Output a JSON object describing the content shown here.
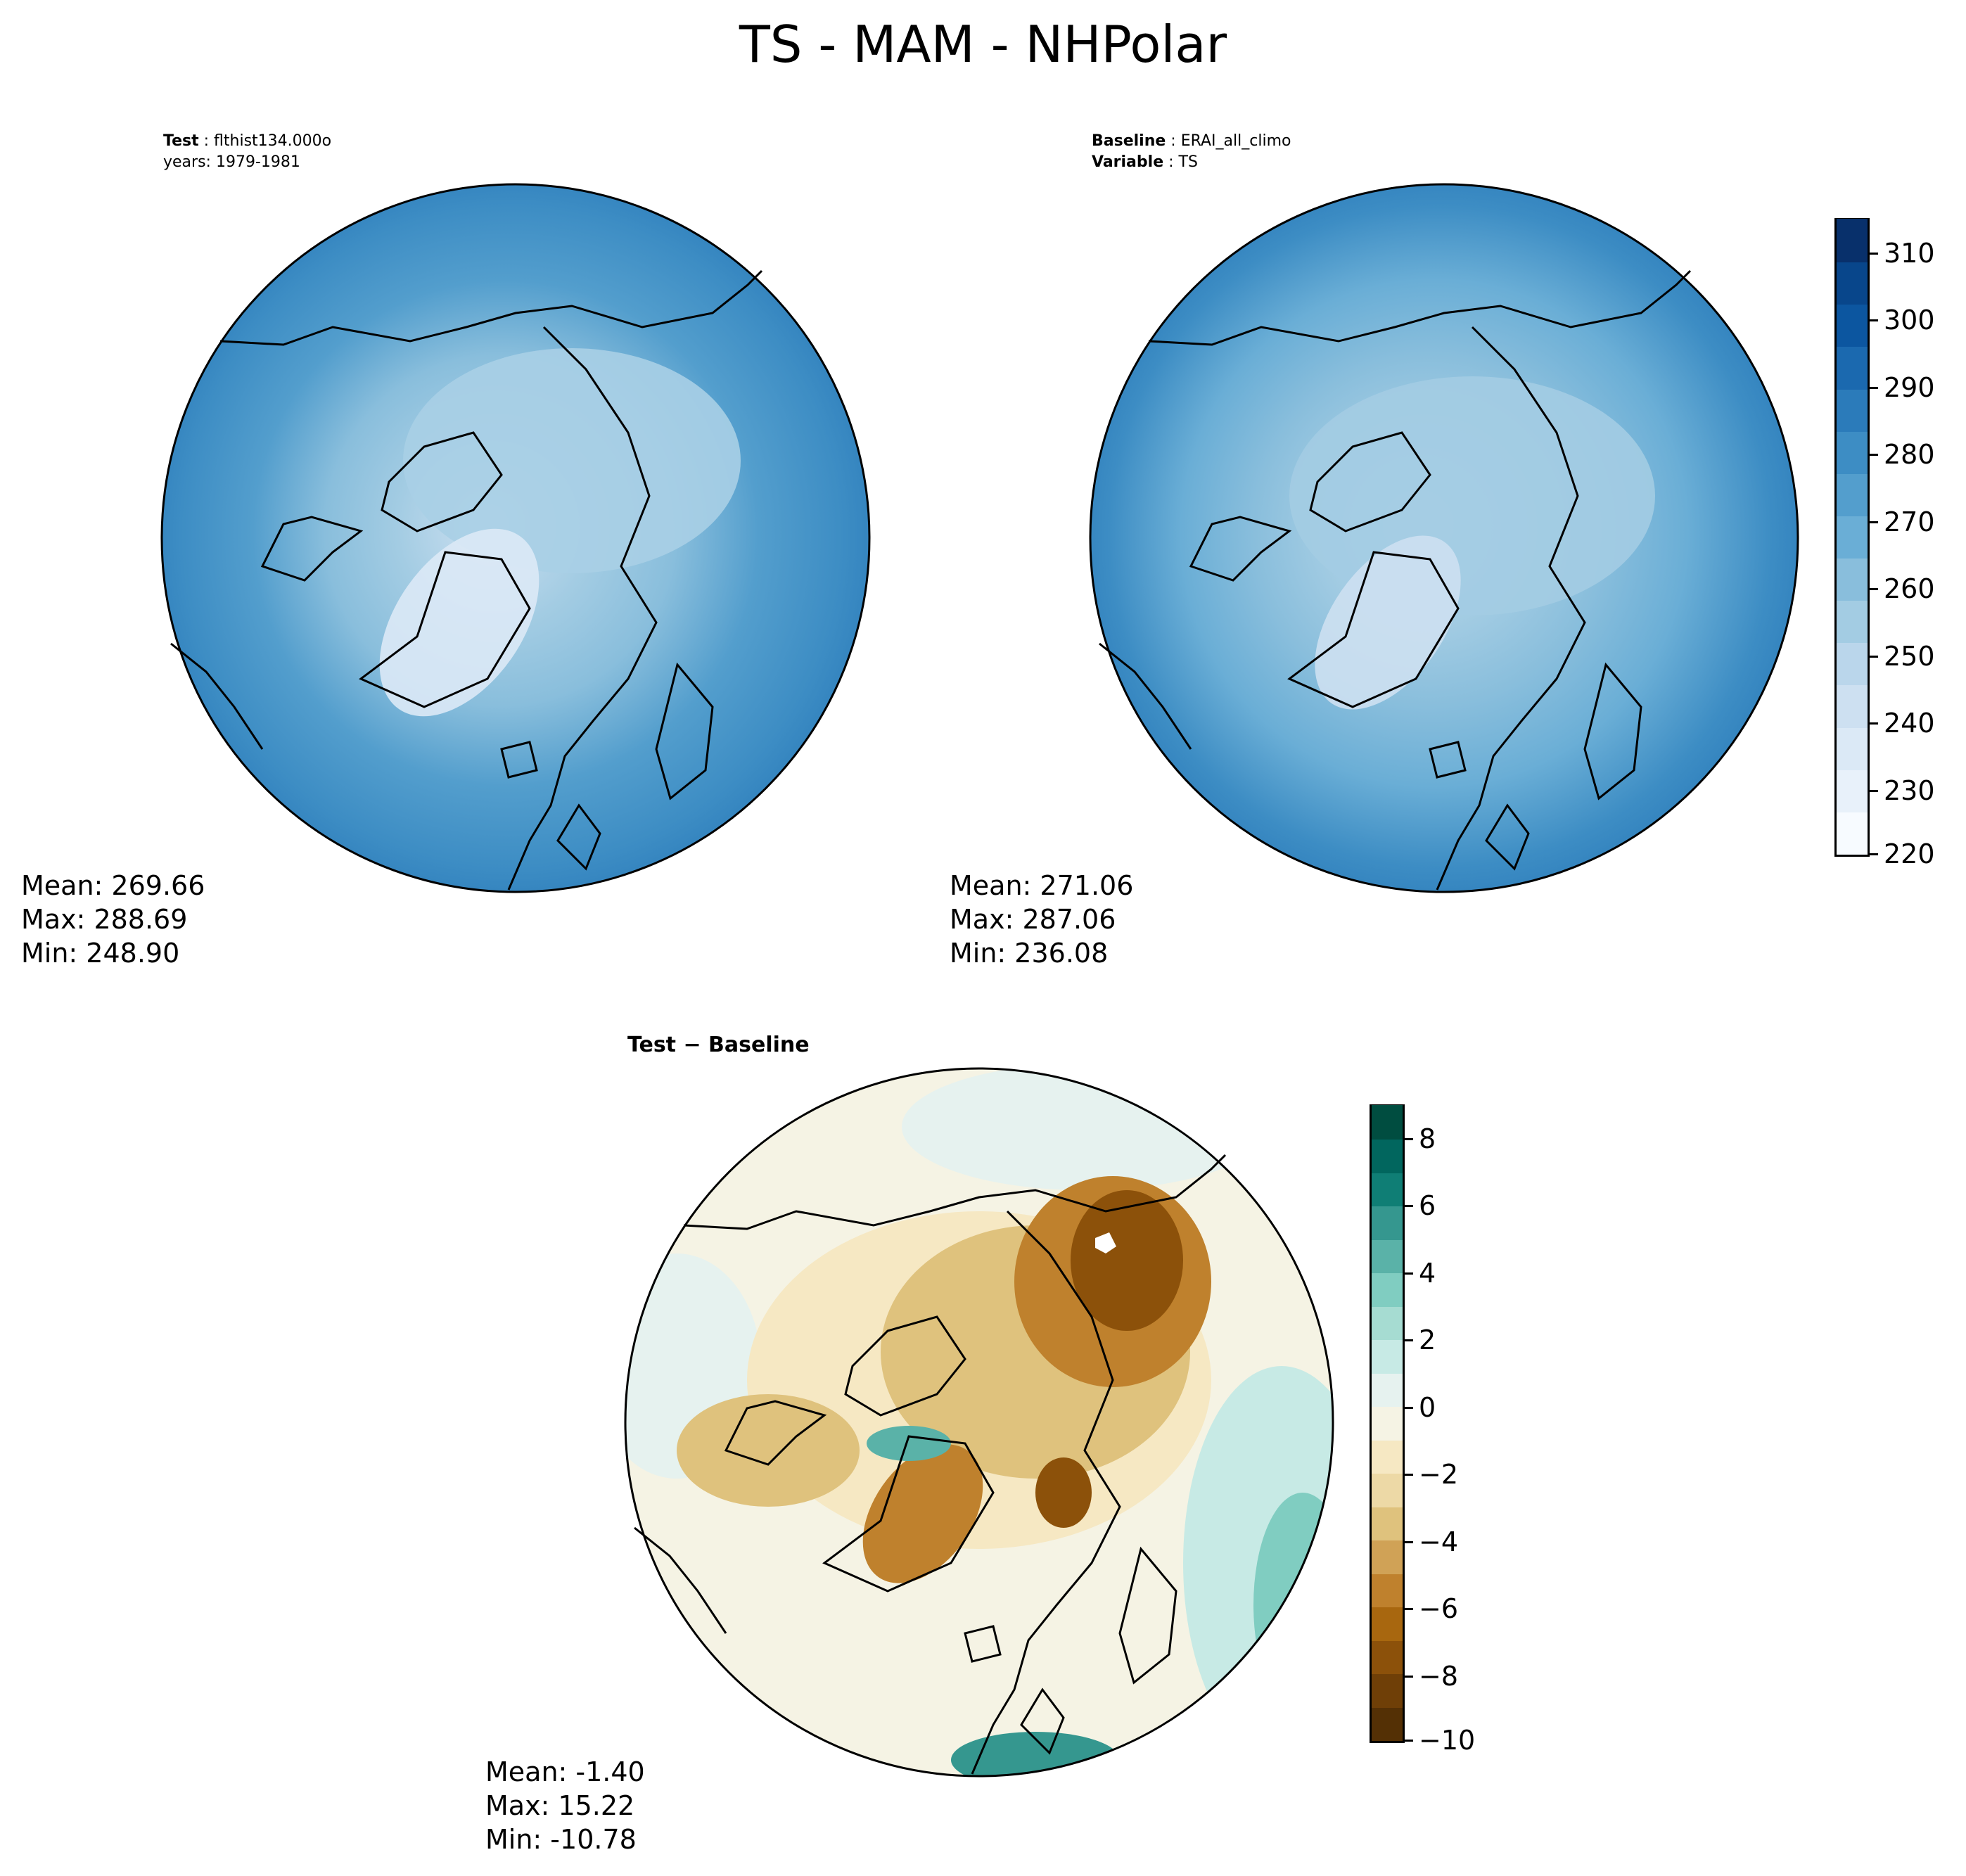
{
  "figure": {
    "title": "TS - MAM - NHPolar"
  },
  "panels": {
    "test": {
      "header_key_1": "Test",
      "header_val_1": "flthist134.000o",
      "header_line_2": "years: 1979-1981",
      "stats": {
        "mean": "Mean: 269.66",
        "max": "Max: 288.69",
        "min": "Min: 248.90"
      }
    },
    "baseline": {
      "header_key_1": "Baseline",
      "header_val_1": "ERAI_all_climo",
      "header_key_2": "Variable",
      "header_val_2": "TS",
      "stats": {
        "mean": "Mean: 271.06",
        "max": "Max: 287.06",
        "min": "Min: 236.08"
      }
    },
    "diff": {
      "title": "Test − Baseline",
      "stats": {
        "mean": "Mean: -1.40",
        "max": "Max: 15.22",
        "min": "Min: -10.78"
      }
    }
  },
  "colorbars": {
    "main": {
      "ticks": [
        "310",
        "300",
        "290",
        "280",
        "270",
        "260",
        "250",
        "240",
        "230",
        "220"
      ],
      "colors": [
        "#f7fbff",
        "#e8f1fa",
        "#dbe9f6",
        "#cde0f1",
        "#bad6eb",
        "#a3cce3",
        "#89bedc",
        "#6aaed6",
        "#539ecd",
        "#3d8dc4",
        "#2b7bba",
        "#1b69af",
        "#0c56a0",
        "#08468b",
        "#08306b"
      ]
    },
    "diff": {
      "ticks": [
        "8",
        "6",
        "4",
        "2",
        "0",
        "−2",
        "−4",
        "−6",
        "−8",
        "−10"
      ],
      "colors": [
        "#543005",
        "#6f3f07",
        "#8c510a",
        "#a8670f",
        "#bf812d",
        "#d0a256",
        "#dfc27d",
        "#edd9a6",
        "#f6e8c3",
        "#f5f3e4",
        "#e6f2ef",
        "#c7eae5",
        "#a6dcd2",
        "#80cdc1",
        "#5ab2a8",
        "#35978f",
        "#0f7e75",
        "#01665e",
        "#004d40"
      ]
    }
  },
  "chart_data": {
    "type": "map",
    "projection": "north-polar-stereographic",
    "variable": "TS",
    "season": "MAM",
    "panels": [
      {
        "name": "Test",
        "mean": 269.66,
        "max": 288.69,
        "min": 248.9,
        "vmin": 220,
        "vmax": 315
      },
      {
        "name": "Baseline",
        "mean": 271.06,
        "max": 287.06,
        "min": 236.08,
        "vmin": 220,
        "vmax": 315
      },
      {
        "name": "Test − Baseline",
        "mean": -1.4,
        "max": 15.22,
        "min": -10.78,
        "vmin": -10,
        "vmax": 9
      }
    ]
  }
}
